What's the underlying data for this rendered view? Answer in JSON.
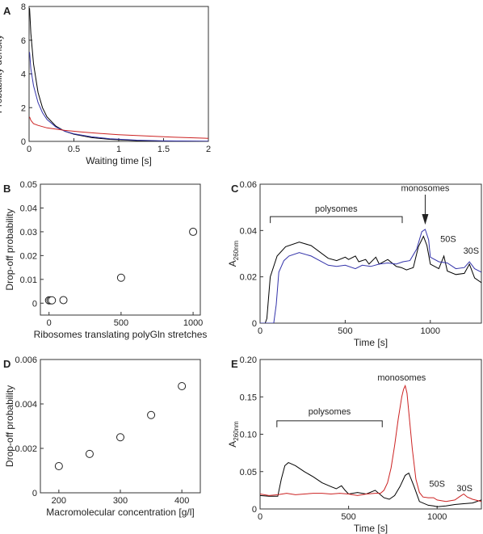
{
  "chart_data": [
    {
      "panel": "A",
      "type": "line",
      "xlabel": "Waiting time [s]",
      "ylabel": "Probability density",
      "xlim": [
        0,
        2
      ],
      "ylim": [
        0,
        8
      ],
      "xticks": [
        "0",
        "0.5",
        "1",
        "1.5",
        "2"
      ],
      "yticks": [
        "0",
        "2",
        "4",
        "6",
        "8"
      ],
      "grid": false,
      "series": [
        {
          "color": "#000000",
          "x": [
            0.005,
            0.02,
            0.05,
            0.1,
            0.15,
            0.2,
            0.3,
            0.4,
            0.5,
            0.7,
            0.9,
            1.2,
            1.5,
            2.0
          ],
          "y": [
            7.9,
            6.4,
            4.6,
            2.9,
            2.0,
            1.45,
            0.9,
            0.6,
            0.42,
            0.22,
            0.12,
            0.05,
            0.02,
            0.0
          ]
        },
        {
          "color": "#3333aa",
          "x": [
            0.005,
            0.02,
            0.05,
            0.1,
            0.15,
            0.2,
            0.3,
            0.4,
            0.5,
            0.7,
            0.9,
            1.2,
            1.5,
            2.0
          ],
          "y": [
            5.3,
            4.3,
            3.3,
            2.3,
            1.7,
            1.3,
            0.85,
            0.6,
            0.45,
            0.27,
            0.16,
            0.07,
            0.03,
            0.01
          ]
        },
        {
          "color": "#cc2222",
          "x": [
            0.005,
            0.02,
            0.05,
            0.1,
            0.2,
            0.4,
            0.6,
            0.8,
            1.0,
            1.3,
            1.6,
            2.0
          ],
          "y": [
            1.45,
            1.25,
            1.05,
            0.95,
            0.8,
            0.65,
            0.55,
            0.47,
            0.4,
            0.32,
            0.25,
            0.18
          ]
        }
      ]
    },
    {
      "panel": "B",
      "type": "scatter",
      "xlabel": "Ribosomes translating polyGln stretches",
      "ylabel": "Drop-off probability",
      "xlim": [
        -60,
        1050
      ],
      "ylim": [
        -0.005,
        0.05
      ],
      "xticks": [
        "0",
        "500",
        "1000"
      ],
      "yticks": [
        "0",
        "0.01",
        "0.02",
        "0.03",
        "0.04",
        "0.05"
      ],
      "x": [
        0,
        10,
        20,
        100,
        500,
        1000
      ],
      "y": [
        0.0012,
        0.0012,
        0.0012,
        0.0013,
        0.0107,
        0.03
      ]
    },
    {
      "panel": "C",
      "type": "line",
      "xlabel": "Time [s]",
      "ylabel_main": "A",
      "ylabel_sub": "260nm",
      "xlim": [
        0,
        1300
      ],
      "ylim": [
        0,
        0.06
      ],
      "xticks": [
        "0",
        "500",
        "1000"
      ],
      "yticks": [
        "0",
        "0.02",
        "0.04",
        "0.06"
      ],
      "annotations": {
        "polysomes": "polysomes",
        "monosomes": "monosomes",
        "s50": "50S",
        "s30": "30S"
      },
      "series": [
        {
          "color": "#000000",
          "x": [
            0,
            30,
            40,
            60,
            100,
            150,
            230,
            300,
            400,
            450,
            500,
            520,
            560,
            580,
            620,
            640,
            680,
            700,
            750,
            800,
            830,
            860,
            900,
            930,
            960,
            980,
            1000,
            1050,
            1080,
            1100,
            1150,
            1200,
            1230,
            1260,
            1300
          ],
          "y": [
            0,
            0,
            0.002,
            0.02,
            0.029,
            0.033,
            0.035,
            0.0335,
            0.028,
            0.027,
            0.0285,
            0.0275,
            0.029,
            0.0265,
            0.0275,
            0.0255,
            0.0285,
            0.0255,
            0.0275,
            0.0245,
            0.024,
            0.023,
            0.024,
            0.033,
            0.0375,
            0.0335,
            0.0255,
            0.0235,
            0.029,
            0.0225,
            0.021,
            0.0215,
            0.0255,
            0.0195,
            0.0175
          ]
        },
        {
          "color": "#3333aa",
          "x": [
            0,
            80,
            95,
            110,
            140,
            170,
            230,
            300,
            400,
            450,
            500,
            560,
            600,
            650,
            700,
            750,
            800,
            840,
            880,
            920,
            950,
            970,
            990,
            1000,
            1050,
            1100,
            1150,
            1200,
            1230,
            1260,
            1300
          ],
          "y": [
            0,
            0,
            0.008,
            0.022,
            0.027,
            0.029,
            0.0305,
            0.029,
            0.025,
            0.0245,
            0.025,
            0.0235,
            0.025,
            0.0245,
            0.0255,
            0.026,
            0.0255,
            0.0265,
            0.027,
            0.032,
            0.0395,
            0.0405,
            0.036,
            0.0285,
            0.0265,
            0.026,
            0.0235,
            0.024,
            0.0265,
            0.0235,
            0.022
          ]
        }
      ]
    },
    {
      "panel": "D",
      "type": "scatter",
      "xlabel": "Macromolecular concentration [g/l]",
      "ylabel": "Drop-off probability",
      "xlim": [
        170,
        430
      ],
      "ylim": [
        0,
        0.006
      ],
      "xticks": [
        "200",
        "300",
        "400"
      ],
      "yticks": [
        "0",
        "0.002",
        "0.004",
        "0.006"
      ],
      "x": [
        200,
        250,
        300,
        350,
        400
      ],
      "y": [
        0.0012,
        0.00175,
        0.0025,
        0.0035,
        0.0048
      ]
    },
    {
      "panel": "E",
      "type": "line",
      "xlabel": "Time [s]",
      "ylabel_main": "A",
      "ylabel_sub": "260nm",
      "xlim": [
        0,
        1250
      ],
      "ylim": [
        0,
        0.2
      ],
      "xticks": [
        "0",
        "500",
        "1000"
      ],
      "yticks": [
        "0",
        "0.05",
        "0.10",
        "0.15",
        "0.20"
      ],
      "annotations": {
        "polysomes": "polysomes",
        "monosomes": "monosomes",
        "s50": "50S",
        "s30": "30S"
      },
      "series": [
        {
          "color": "#000000",
          "x": [
            0,
            50,
            100,
            120,
            140,
            160,
            200,
            250,
            300,
            350,
            400,
            430,
            460,
            480,
            500,
            550,
            600,
            650,
            700,
            730,
            760,
            790,
            820,
            840,
            870,
            900,
            950,
            980,
            1000,
            1050,
            1100,
            1150,
            1200,
            1250
          ],
          "y": [
            0.018,
            0.017,
            0.017,
            0.04,
            0.058,
            0.062,
            0.058,
            0.05,
            0.043,
            0.035,
            0.03,
            0.027,
            0.031,
            0.025,
            0.02,
            0.022,
            0.02,
            0.025,
            0.015,
            0.013,
            0.018,
            0.03,
            0.045,
            0.048,
            0.03,
            0.01,
            0.005,
            0.004,
            0.003,
            0.004,
            0.006,
            0.007,
            0.008,
            0.012
          ]
        },
        {
          "color": "#cc2222",
          "x": [
            0,
            50,
            100,
            150,
            200,
            250,
            300,
            350,
            400,
            450,
            500,
            550,
            600,
            650,
            680,
            700,
            720,
            740,
            760,
            780,
            800,
            810,
            820,
            830,
            840,
            860,
            880,
            900,
            920,
            950,
            980,
            1000,
            1050,
            1100,
            1130,
            1150,
            1170,
            1200,
            1250
          ],
          "y": [
            0.02,
            0.018,
            0.019,
            0.021,
            0.019,
            0.02,
            0.021,
            0.021,
            0.02,
            0.021,
            0.02,
            0.018,
            0.02,
            0.021,
            0.021,
            0.025,
            0.035,
            0.055,
            0.085,
            0.12,
            0.15,
            0.16,
            0.165,
            0.155,
            0.13,
            0.08,
            0.04,
            0.022,
            0.016,
            0.015,
            0.015,
            0.012,
            0.01,
            0.012,
            0.017,
            0.02,
            0.016,
            0.013,
            0.01
          ]
        }
      ]
    }
  ]
}
